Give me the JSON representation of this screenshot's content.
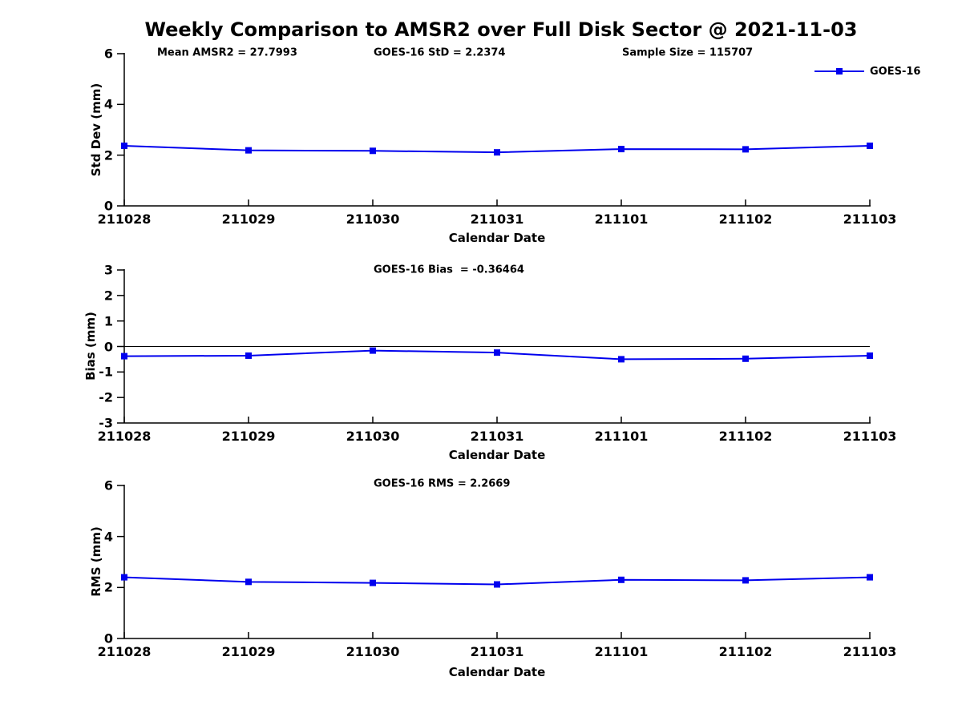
{
  "figure_title": "Weekly Comparison to AMSR2 over Full Disk Sector @ 2021-11-03",
  "legend": {
    "label": "GOES-16",
    "marker": "square"
  },
  "colors": {
    "line": "#0000EE",
    "marker": "#0000EE",
    "axis": "#000000",
    "text": "#000000",
    "background": "#FFFFFF"
  },
  "chart_data": [
    {
      "type": "line",
      "panel": "std-dev",
      "annotations": [
        "Mean AMSR2 = 27.7993",
        "GOES-16 StD = 2.2374",
        "Sample Size = 115707"
      ],
      "categories": [
        "211028",
        "211029",
        "211030",
        "211031",
        "211101",
        "211102",
        "211103"
      ],
      "series": [
        {
          "name": "GOES-16",
          "marker": "square",
          "color": "#0000EE",
          "values": [
            2.37,
            2.19,
            2.17,
            2.11,
            2.24,
            2.23,
            2.37
          ]
        }
      ],
      "xlabel": "Calendar Date",
      "ylabel": "Std Dev (mm)",
      "ylim": [
        0,
        6
      ],
      "yticks": [
        0,
        2,
        4,
        6
      ],
      "grid": false,
      "zero_line": false,
      "legend_position": "top-right"
    },
    {
      "type": "line",
      "panel": "bias",
      "annotations": [
        "GOES-16 Bias  = -0.36464"
      ],
      "categories": [
        "211028",
        "211029",
        "211030",
        "211031",
        "211101",
        "211102",
        "211103"
      ],
      "series": [
        {
          "name": "GOES-16",
          "marker": "square",
          "color": "#0000EE",
          "values": [
            -0.38,
            -0.36,
            -0.16,
            -0.24,
            -0.5,
            -0.48,
            -0.36
          ]
        }
      ],
      "xlabel": "Calendar Date",
      "ylabel": "Bias (mm)",
      "ylim": [
        -3,
        3
      ],
      "yticks": [
        -3,
        -2,
        -1,
        0,
        1,
        2,
        3
      ],
      "grid": false,
      "zero_line": true,
      "legend_position": "none"
    },
    {
      "type": "line",
      "panel": "rms",
      "annotations": [
        "GOES-16 RMS = 2.2669"
      ],
      "categories": [
        "211028",
        "211029",
        "211030",
        "211031",
        "211101",
        "211102",
        "211103"
      ],
      "series": [
        {
          "name": "GOES-16",
          "marker": "square",
          "color": "#0000EE",
          "values": [
            2.4,
            2.22,
            2.18,
            2.12,
            2.3,
            2.28,
            2.4
          ]
        }
      ],
      "xlabel": "Calendar Date",
      "ylabel": "RMS (mm)",
      "ylim": [
        0,
        6
      ],
      "yticks": [
        0,
        2,
        4,
        6
      ],
      "grid": false,
      "zero_line": false,
      "legend_position": "none"
    }
  ]
}
